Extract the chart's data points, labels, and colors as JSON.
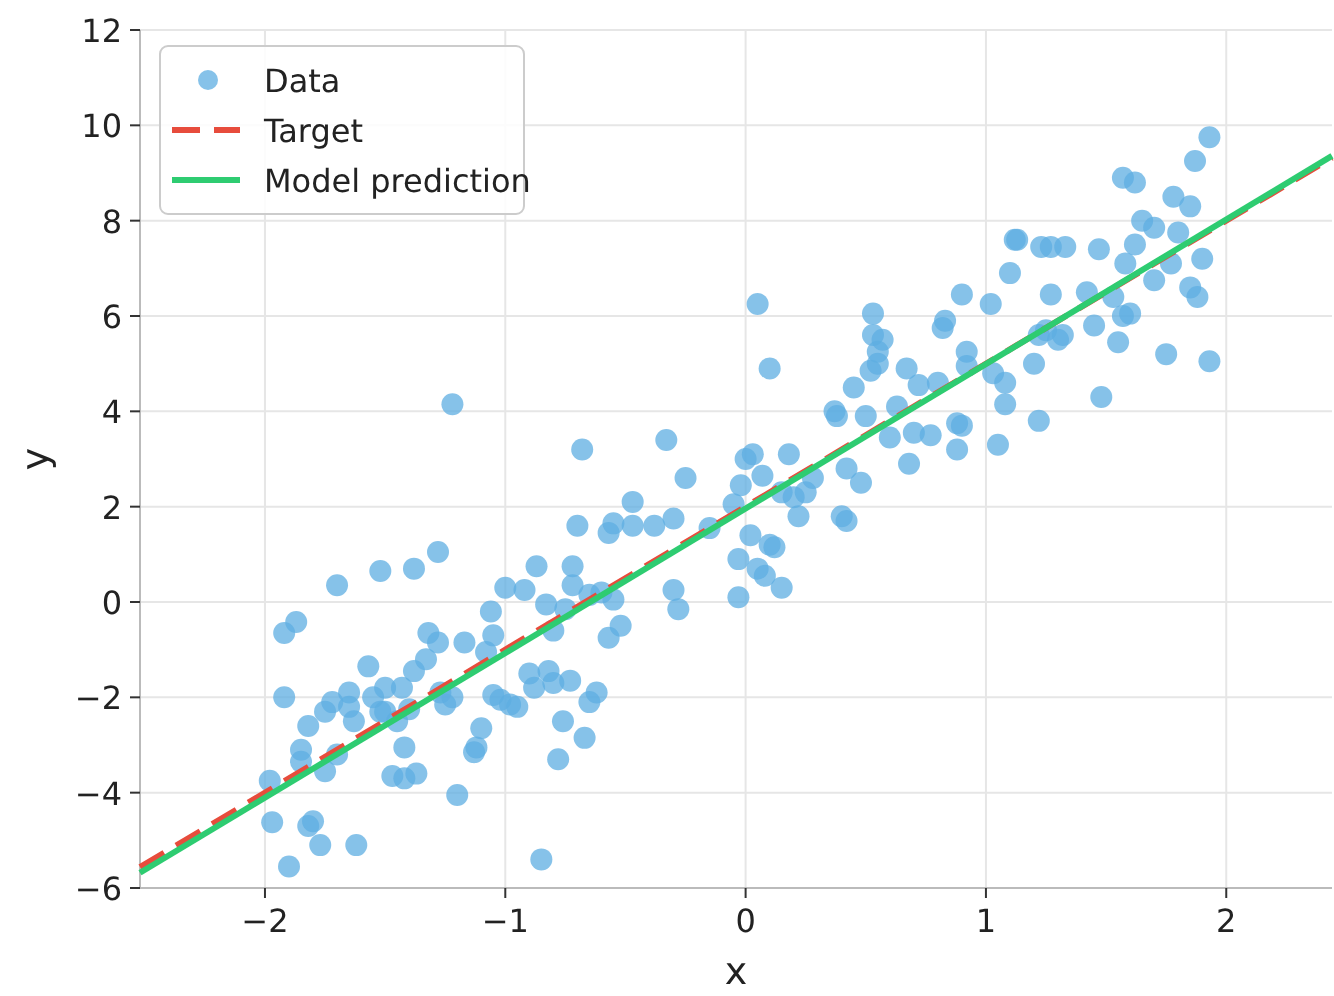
{
  "chart_data": {
    "type": "scatter",
    "xlabel": "x",
    "ylabel": "y",
    "xlim": [
      -2.52,
      2.44
    ],
    "ylim": [
      -6,
      12
    ],
    "xticks": [
      {
        "value": -2,
        "label": "−2"
      },
      {
        "value": -1,
        "label": "−1"
      },
      0,
      1,
      2
    ],
    "yticks": [
      {
        "value": -6,
        "label": "−6"
      },
      {
        "value": -4,
        "label": "−4"
      },
      {
        "value": -2,
        "label": "−2"
      },
      0,
      2,
      4,
      6,
      8,
      10,
      12
    ],
    "grid": true,
    "legend": "top left",
    "series": [
      {
        "name": "Data",
        "marker": "circle",
        "color": "#5dade2",
        "x": [
          -1.98,
          -1.97,
          -1.92,
          -1.92,
          -1.87,
          -1.9,
          -1.85,
          -1.85,
          -1.82,
          -1.82,
          -1.8,
          -1.77,
          -1.75,
          -1.75,
          -1.72,
          -1.7,
          -1.7,
          -1.65,
          -1.65,
          -1.63,
          -1.62,
          -1.57,
          -1.55,
          -1.52,
          -1.52,
          -1.5,
          -1.5,
          -1.47,
          -1.45,
          -1.43,
          -1.42,
          -1.42,
          -1.4,
          -1.38,
          -1.38,
          -1.37,
          -1.33,
          -1.32,
          -1.28,
          -1.28,
          -1.27,
          -1.25,
          -1.22,
          -1.22,
          -1.2,
          -1.17,
          -1.13,
          -1.12,
          -1.1,
          -1.08,
          -1.06,
          -1.05,
          -1.05,
          -1.02,
          -1.0,
          -0.98,
          -0.95,
          -0.92,
          -0.9,
          -0.88,
          -0.87,
          -0.85,
          -0.83,
          -0.82,
          -0.8,
          -0.8,
          -0.78,
          -0.76,
          -0.75,
          -0.73,
          -0.72,
          -0.72,
          -0.7,
          -0.68,
          -0.67,
          -0.65,
          -0.65,
          -0.62,
          -0.6,
          -0.57,
          -0.57,
          -0.55,
          -0.55,
          -0.52,
          -0.47,
          -0.47,
          -0.38,
          -0.33,
          -0.3,
          -0.3,
          -0.28,
          -0.25,
          -0.15,
          -0.05,
          -0.03,
          -0.03,
          -0.02,
          0.0,
          0.02,
          0.03,
          0.05,
          0.05,
          0.07,
          0.08,
          0.1,
          0.1,
          0.12,
          0.15,
          0.15,
          0.18,
          0.2,
          0.22,
          0.25,
          0.28,
          0.37,
          0.38,
          0.4,
          0.42,
          0.42,
          0.45,
          0.48,
          0.5,
          0.52,
          0.53,
          0.53,
          0.55,
          0.55,
          0.57,
          0.6,
          0.63,
          0.67,
          0.68,
          0.7,
          0.72,
          0.77,
          0.8,
          0.82,
          0.83,
          0.88,
          0.88,
          0.9,
          0.9,
          0.92,
          0.92,
          1.02,
          1.03,
          1.05,
          1.08,
          1.08,
          1.1,
          1.12,
          1.13,
          1.2,
          1.22,
          1.22,
          1.23,
          1.25,
          1.27,
          1.27,
          1.3,
          1.32,
          1.33,
          1.42,
          1.45,
          1.47,
          1.48,
          1.53,
          1.55,
          1.57,
          1.57,
          1.58,
          1.6,
          1.62,
          1.62,
          1.65,
          1.7,
          1.7,
          1.75,
          1.77,
          1.78,
          1.8,
          1.85,
          1.85,
          1.87,
          1.88,
          1.9,
          1.93,
          1.93
        ],
        "values": [
          -3.75,
          -4.62,
          -0.65,
          -2.0,
          -0.42,
          -5.55,
          -3.1,
          -3.35,
          -2.6,
          -4.7,
          -4.6,
          -5.1,
          -2.3,
          -3.55,
          -2.1,
          0.35,
          -3.2,
          -1.9,
          -2.2,
          -2.5,
          -5.1,
          -1.35,
          -2.0,
          -2.3,
          0.65,
          -1.8,
          -2.3,
          -3.65,
          -2.5,
          -1.8,
          -3.05,
          -3.7,
          -2.25,
          0.7,
          -1.45,
          -3.6,
          -1.2,
          -0.65,
          1.05,
          -0.85,
          -1.9,
          -2.15,
          -2.0,
          4.15,
          -4.05,
          -0.85,
          -3.15,
          -3.05,
          -2.65,
          -1.05,
          -0.2,
          -1.95,
          -0.7,
          -2.05,
          0.3,
          -2.15,
          -2.2,
          0.25,
          -1.5,
          -1.8,
          0.75,
          -5.4,
          -0.05,
          -1.45,
          -1.7,
          -0.6,
          -3.3,
          -2.5,
          -0.15,
          -1.65,
          0.35,
          0.75,
          1.6,
          3.2,
          -2.85,
          -2.1,
          0.15,
          -1.9,
          0.2,
          1.45,
          -0.75,
          1.65,
          0.05,
          -0.5,
          1.6,
          2.1,
          1.6,
          3.4,
          1.75,
          0.25,
          -0.15,
          2.6,
          1.55,
          2.05,
          0.9,
          0.1,
          2.45,
          3.0,
          1.4,
          3.1,
          6.25,
          0.7,
          2.65,
          0.55,
          4.9,
          1.2,
          1.15,
          0.3,
          2.3,
          3.1,
          2.2,
          1.8,
          2.3,
          2.6,
          4.0,
          3.9,
          1.8,
          1.7,
          2.8,
          4.5,
          2.5,
          3.9,
          4.85,
          6.05,
          5.6,
          5.0,
          5.25,
          5.5,
          3.45,
          4.1,
          4.9,
          2.9,
          3.55,
          4.55,
          3.5,
          4.6,
          5.75,
          5.9,
          3.2,
          3.75,
          3.7,
          6.45,
          5.25,
          4.95,
          6.25,
          4.8,
          3.3,
          4.6,
          4.15,
          6.9,
          7.6,
          7.6,
          5.0,
          5.6,
          3.8,
          7.45,
          5.7,
          7.45,
          6.45,
          5.5,
          5.6,
          7.45,
          6.5,
          5.8,
          7.4,
          4.3,
          6.4,
          5.45,
          8.9,
          6.0,
          7.1,
          6.05,
          8.8,
          7.5,
          8.0,
          7.85,
          6.75,
          5.2,
          7.1,
          8.5,
          7.75,
          8.3,
          6.6,
          9.25,
          6.4,
          7.2,
          9.75,
          5.05
        ]
      },
      {
        "name": "Target",
        "type": "line",
        "line_style": "dashed",
        "color": "#e74c3c",
        "x": [
          -2.52,
          2.44
        ],
        "values": [
          -5.56,
          9.32
        ]
      },
      {
        "name": "Model prediction",
        "type": "line",
        "line_style": "solid",
        "color": "#2ecc71",
        "x": [
          -2.52,
          2.44
        ],
        "values": [
          -5.68,
          9.36
        ]
      }
    ]
  }
}
